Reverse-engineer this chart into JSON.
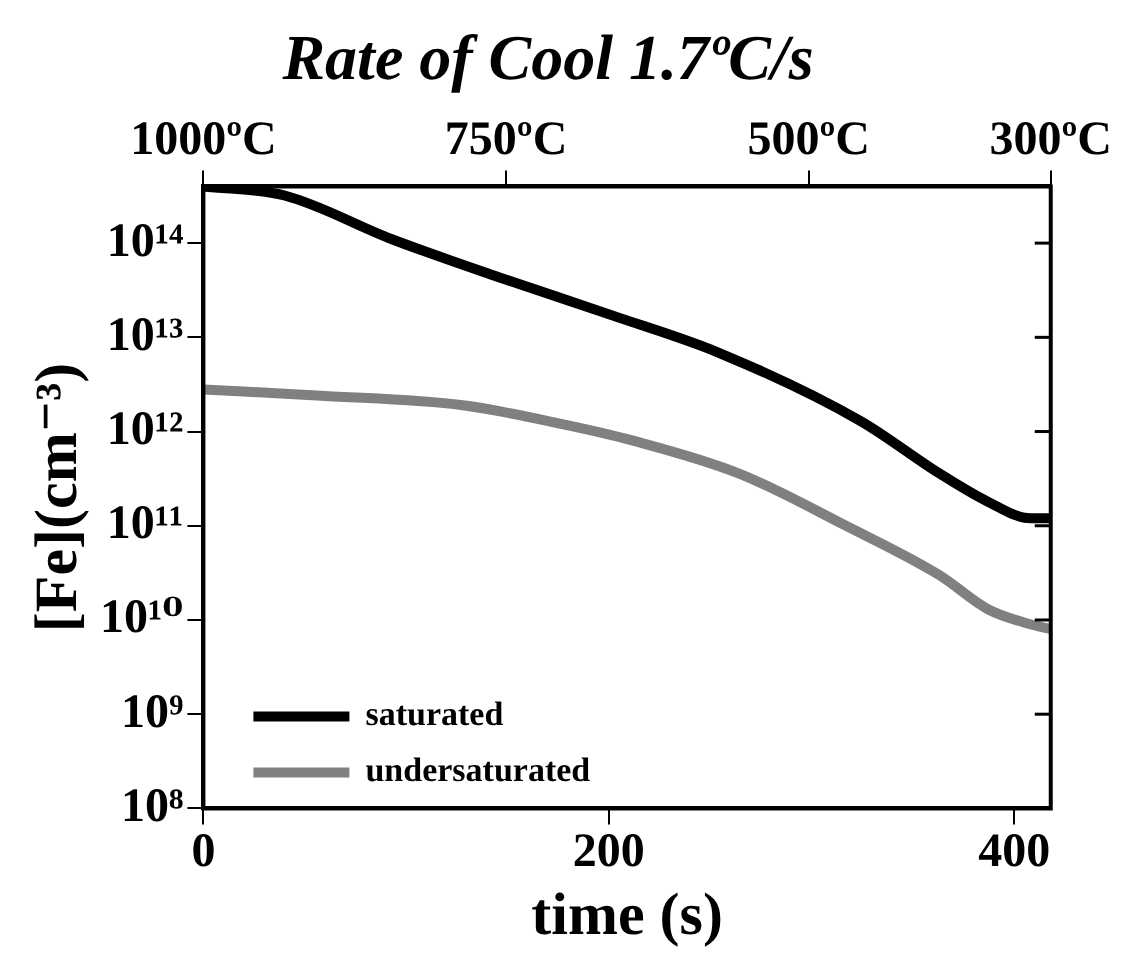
{
  "chart_data": {
    "type": "line",
    "title": "Rate of Cool 1.7ºC/s",
    "xlabel": "time (s)",
    "ylabel": "[Fe](cm⁻³)",
    "xlim": [
      0,
      418
    ],
    "xticks": [
      0,
      200,
      400
    ],
    "x2lim": [
      1000,
      300
    ],
    "x2ticks": [
      {
        "value": 1000,
        "label": "1000ºC"
      },
      {
        "value": 750,
        "label": "750ºC"
      },
      {
        "value": 500,
        "label": "500ºC"
      },
      {
        "value": 300,
        "label": "300ºC"
      }
    ],
    "ylim": [
      100000000.0,
      400000000000000.0
    ],
    "log": "y",
    "yticks": [
      {
        "value": 100000000.0,
        "label": "10⁸"
      },
      {
        "value": 1000000000.0,
        "label": "10⁹"
      },
      {
        "value": 10000000000.0,
        "label": "10¹⁰"
      },
      {
        "value": 100000000000.0,
        "label": "10¹¹"
      },
      {
        "value": 1000000000000.0,
        "label": "10¹²"
      },
      {
        "value": 10000000000000.0,
        "label": "10¹³"
      },
      {
        "value": 100000000000000.0,
        "label": "10¹⁴"
      }
    ],
    "grid": false,
    "legend": "bottom left",
    "marker": "none",
    "line_style": "solid",
    "series": [
      {
        "name": "saturated",
        "color": "#000000",
        "x": [
          0,
          40,
          93,
          145,
          202,
          254,
          324,
          363,
          387,
          408,
          418
        ],
        "values": [
          400000000000000.0,
          320000000000000.0,
          110000000000000.0,
          44000000000000.0,
          17000000000000.0,
          6900000000000.0,
          1300000000000.0,
          360000000000.0,
          180000000000.0,
          120000000000.0,
          120000000000.0
        ]
      },
      {
        "name": "undersaturated",
        "color": "#808080",
        "x": [
          0,
          58,
          128,
          177,
          212,
          264,
          317,
          363,
          387,
          408,
          418
        ],
        "values": [
          2800000000000.0,
          2400000000000.0,
          1900000000000.0,
          1200000000000.0,
          800000000000.0,
          360000000000.0,
          100000000000.0,
          30000000000.0,
          13000000000.0,
          9000000000.0,
          8000000000.0
        ]
      }
    ]
  }
}
